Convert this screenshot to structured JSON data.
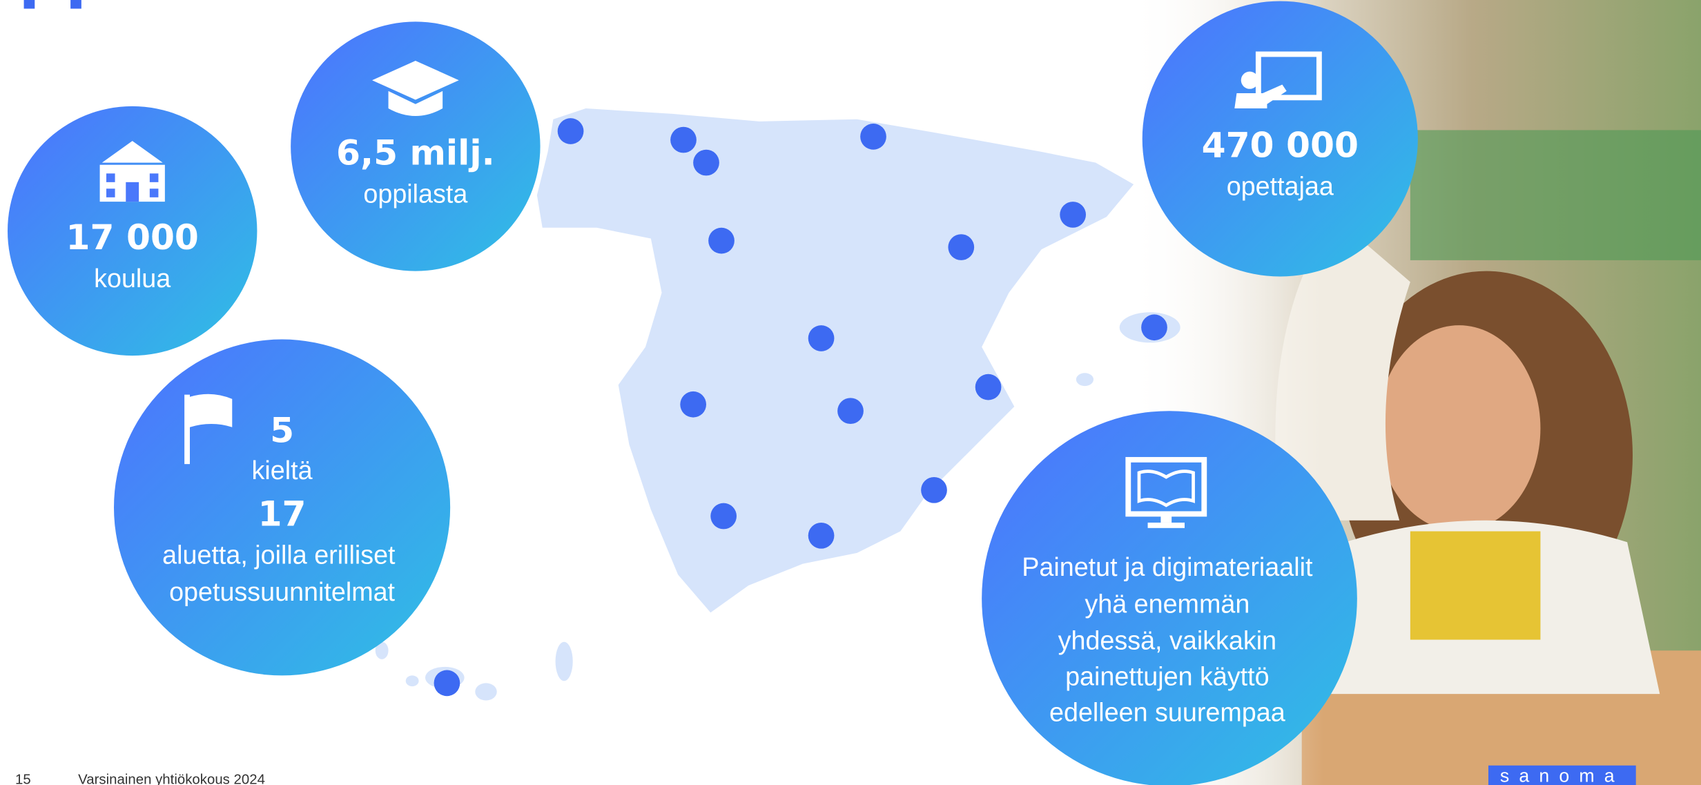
{
  "stats": [
    {
      "value": "17 000",
      "label": [
        "koulua"
      ]
    },
    {
      "value": "6,5 milj.",
      "label": [
        "oppilasta"
      ]
    },
    {
      "value": "5",
      "label": [
        "kieltä"
      ],
      "value2": "17",
      "label2": [
        "aluetta, joilla erilliset",
        "opetussuunnitelmat"
      ]
    },
    {
      "value": "470 000",
      "label": [
        "opettajaa"
      ]
    },
    {
      "label": [
        "Painetut ja digimateriaalit",
        "yhä enemmän",
        "yhdessä, vaikkakin",
        "painettujen käyttö",
        "edelleen suurempaa"
      ]
    }
  ],
  "footer": {
    "page": "15",
    "text": "Varsinainen yhtiökokous 2024",
    "logo": "sanoma"
  }
}
